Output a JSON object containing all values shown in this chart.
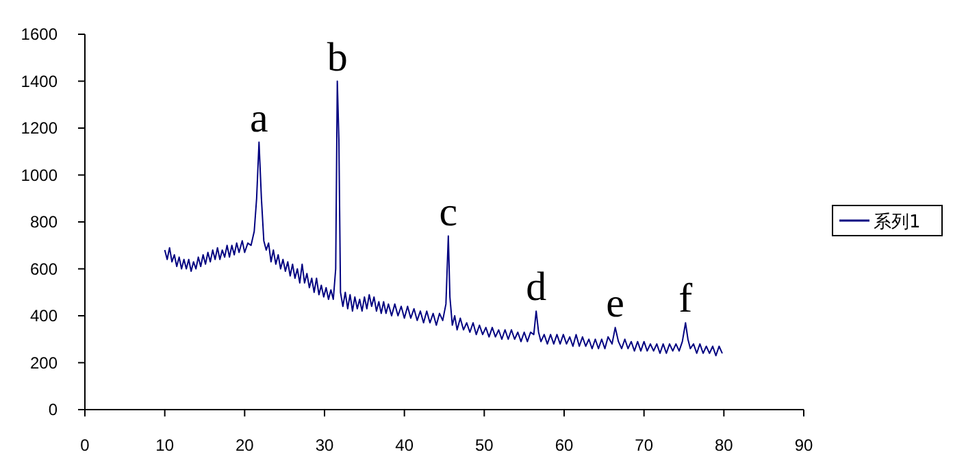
{
  "chart_data": {
    "type": "line",
    "xlim": [
      0,
      90
    ],
    "xticks": [
      0,
      10,
      20,
      30,
      40,
      50,
      60,
      70,
      80,
      90
    ],
    "ylim": [
      0,
      1600
    ],
    "yticks": [
      0,
      200,
      400,
      600,
      800,
      1000,
      1200,
      1400,
      1600
    ],
    "legend": "right",
    "grid": false,
    "line_style": "solid",
    "annotations": [
      {
        "text": "a",
        "x": 21.8,
        "y": 1140
      },
      {
        "text": "b",
        "x": 31.6,
        "y": 1400
      },
      {
        "text": "c",
        "x": 45.5,
        "y": 740
      },
      {
        "text": "d",
        "x": 56.5,
        "y": 420
      },
      {
        "text": "e",
        "x": 66.4,
        "y": 350
      },
      {
        "text": "f",
        "x": 75.2,
        "y": 370
      }
    ],
    "series": [
      {
        "name": "系列1",
        "color": "#000080",
        "x": [
          10,
          10.3,
          10.6,
          10.9,
          11.2,
          11.5,
          11.8,
          12.1,
          12.4,
          12.7,
          13,
          13.3,
          13.6,
          13.9,
          14.2,
          14.5,
          14.8,
          15.1,
          15.4,
          15.7,
          16,
          16.3,
          16.6,
          16.9,
          17.2,
          17.5,
          17.8,
          18.1,
          18.4,
          18.7,
          19,
          19.3,
          19.7,
          20,
          20.4,
          20.8,
          21.2,
          21.5,
          21.8,
          22.1,
          22.4,
          22.7,
          23,
          23.3,
          23.6,
          23.9,
          24.2,
          24.5,
          24.8,
          25.1,
          25.4,
          25.7,
          26,
          26.3,
          26.6,
          26.9,
          27.2,
          27.5,
          27.8,
          28.1,
          28.4,
          28.7,
          29,
          29.3,
          29.6,
          29.9,
          30.2,
          30.5,
          30.8,
          31.1,
          31.4,
          31.6,
          31.8,
          32,
          32.3,
          32.6,
          32.9,
          33.2,
          33.5,
          33.8,
          34.1,
          34.4,
          34.7,
          35,
          35.3,
          35.6,
          35.9,
          36.2,
          36.5,
          36.8,
          37.1,
          37.4,
          37.7,
          38,
          38.4,
          38.8,
          39.2,
          39.6,
          40,
          40.4,
          40.8,
          41.2,
          41.6,
          42,
          42.4,
          42.8,
          43.2,
          43.6,
          44,
          44.4,
          44.8,
          45.2,
          45.5,
          45.7,
          46,
          46.3,
          46.6,
          47,
          47.4,
          47.8,
          48.2,
          48.6,
          49,
          49.4,
          49.8,
          50.2,
          50.6,
          51,
          51.4,
          51.8,
          52.2,
          52.6,
          53,
          53.4,
          53.8,
          54.2,
          54.6,
          55,
          55.4,
          55.8,
          56.2,
          56.5,
          56.8,
          57.1,
          57.5,
          57.9,
          58.3,
          58.7,
          59.1,
          59.5,
          59.9,
          60.3,
          60.7,
          61.1,
          61.5,
          61.9,
          62.3,
          62.7,
          63.1,
          63.5,
          63.9,
          64.3,
          64.7,
          65.1,
          65.5,
          66,
          66.4,
          66.8,
          67.2,
          67.6,
          68,
          68.4,
          68.8,
          69.2,
          69.6,
          70,
          70.4,
          70.8,
          71.2,
          71.6,
          72,
          72.4,
          72.8,
          73.2,
          73.6,
          74,
          74.4,
          74.8,
          75.2,
          75.5,
          75.8,
          76.2,
          76.6,
          77,
          77.4,
          77.8,
          78.2,
          78.6,
          79,
          79.4,
          79.8
        ],
        "values": [
          680,
          640,
          690,
          630,
          660,
          610,
          650,
          600,
          640,
          600,
          640,
          590,
          630,
          600,
          650,
          610,
          660,
          620,
          670,
          630,
          680,
          640,
          690,
          640,
          680,
          650,
          700,
          650,
          700,
          660,
          710,
          670,
          720,
          670,
          710,
          700,
          760,
          900,
          1140,
          900,
          720,
          680,
          710,
          630,
          680,
          620,
          660,
          600,
          640,
          590,
          630,
          570,
          620,
          560,
          600,
          540,
          620,
          540,
          580,
          520,
          560,
          500,
          560,
          490,
          530,
          480,
          520,
          470,
          510,
          470,
          600,
          1400,
          1150,
          500,
          440,
          500,
          430,
          490,
          420,
          480,
          430,
          470,
          420,
          480,
          430,
          490,
          440,
          480,
          420,
          460,
          410,
          460,
          410,
          450,
          400,
          450,
          400,
          440,
          390,
          440,
          390,
          430,
          380,
          420,
          370,
          420,
          370,
          410,
          360,
          410,
          380,
          450,
          740,
          480,
          360,
          400,
          340,
          390,
          340,
          370,
          330,
          370,
          320,
          360,
          320,
          350,
          310,
          350,
          310,
          340,
          300,
          340,
          300,
          340,
          300,
          330,
          290,
          330,
          290,
          330,
          320,
          420,
          330,
          290,
          320,
          280,
          320,
          280,
          320,
          280,
          320,
          280,
          310,
          270,
          320,
          270,
          310,
          270,
          300,
          260,
          300,
          260,
          300,
          260,
          310,
          280,
          350,
          290,
          260,
          300,
          260,
          290,
          250,
          290,
          250,
          290,
          250,
          280,
          250,
          280,
          240,
          280,
          240,
          280,
          250,
          280,
          250,
          290,
          370,
          300,
          260,
          280,
          240,
          280,
          240,
          270,
          240,
          270,
          230,
          270,
          240
        ]
      }
    ]
  }
}
